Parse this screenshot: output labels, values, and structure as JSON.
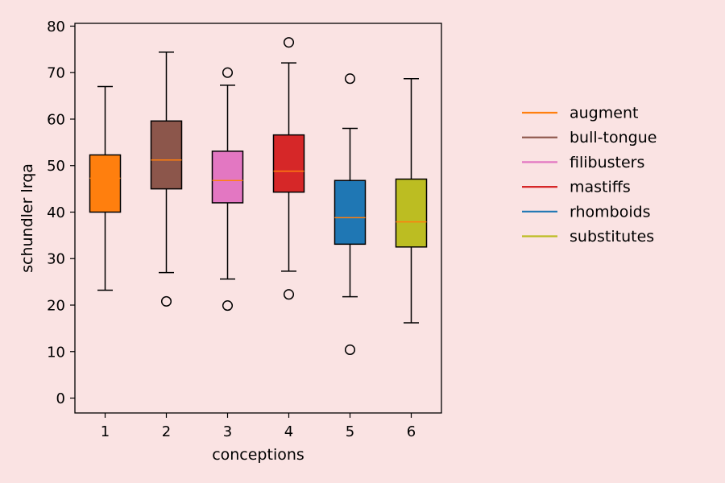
{
  "chart_data": {
    "type": "box",
    "xlabel": "conceptions",
    "ylabel": "schundler lrqa",
    "ylim": [
      -3.2,
      80.6
    ],
    "yticks": [
      0,
      10,
      20,
      30,
      40,
      50,
      60,
      70,
      80
    ],
    "categories": [
      "1",
      "2",
      "3",
      "4",
      "5",
      "6"
    ],
    "median_color": "#ff7f0e",
    "series": [
      {
        "name": "augment",
        "color": "#ff7f0e",
        "whislo": 23.2,
        "q1": 40.0,
        "med": 47.3,
        "q3": 52.3,
        "whishi": 67.0,
        "fliers": []
      },
      {
        "name": "bull-tongue",
        "color": "#8c564b",
        "whislo": 27.0,
        "q1": 45.0,
        "med": 51.2,
        "q3": 59.6,
        "whishi": 74.4,
        "fliers": [
          20.8
        ]
      },
      {
        "name": "filibusters",
        "color": "#e377c2",
        "whislo": 25.6,
        "q1": 42.0,
        "med": 46.8,
        "q3": 53.1,
        "whishi": 67.3,
        "fliers": [
          70.0,
          19.9
        ]
      },
      {
        "name": "mastiffs",
        "color": "#d62728",
        "whislo": 27.3,
        "q1": 44.3,
        "med": 48.8,
        "q3": 56.6,
        "whishi": 72.1,
        "fliers": [
          76.5,
          22.3
        ]
      },
      {
        "name": "rhomboids",
        "color": "#1f77b4",
        "whislo": 21.8,
        "q1": 33.1,
        "med": 38.8,
        "q3": 46.8,
        "whishi": 58.0,
        "fliers": [
          68.7,
          10.4
        ]
      },
      {
        "name": "substitutes",
        "color": "#bcbd22",
        "whislo": 16.2,
        "q1": 32.5,
        "med": 37.9,
        "q3": 47.1,
        "whishi": 68.7,
        "fliers": []
      }
    ],
    "legend": {
      "placement": "right, outside plot area"
    }
  }
}
